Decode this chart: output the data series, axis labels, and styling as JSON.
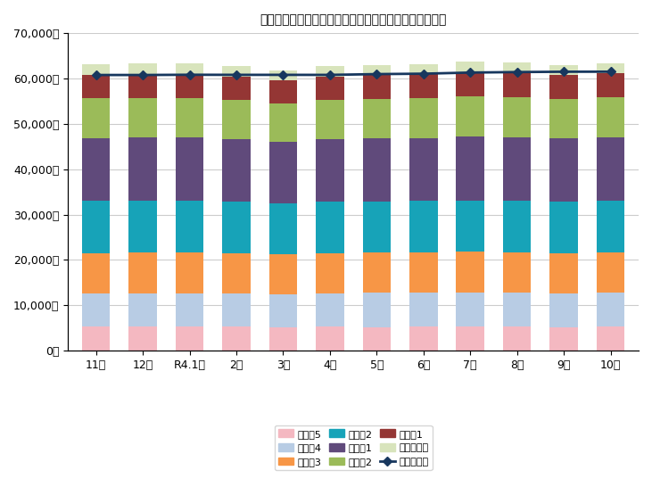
{
  "months": [
    "11月",
    "12月",
    "R4.1月",
    "2月",
    "3月",
    "4月",
    "5月",
    "6月",
    "7月",
    "8月",
    "9月",
    "10月"
  ],
  "series": {
    "要介護5": {
      "values": [
        5285,
        5306,
        5313,
        5242,
        5206,
        5247,
        5209,
        5249,
        5273,
        5239,
        5220,
        5273
      ],
      "color": "#f4b8c1"
    },
    "要介護4": {
      "values": [
        7331,
        7382,
        7375,
        7359,
        7284,
        7418,
        7514,
        7518,
        7525,
        7522,
        7445,
        7512
      ],
      "color": "#b8cce4"
    },
    "要介護3": {
      "values": [
        8931,
        8894,
        8888,
        8840,
        8785,
        8808,
        8862,
        8905,
        8986,
        8967,
        8870,
        8946
      ],
      "color": "#f79646"
    },
    "要介護2": {
      "values": [
        11529,
        11525,
        11441,
        11328,
        11168,
        11372,
        11320,
        11352,
        11316,
        11286,
        11290,
        11312
      ],
      "color": "#17a3b8"
    },
    "要介護1": {
      "values": [
        13815,
        13873,
        13902,
        13774,
        13571,
        13791,
        13850,
        13881,
        14072,
        14076,
        13968,
        13993
      ],
      "color": "#604a7b"
    },
    "要支援2": {
      "values": [
        8700,
        8745,
        8741,
        8653,
        8544,
        8636,
        8714,
        8681,
        8860,
        8845,
        8736,
        8766
      ],
      "color": "#9bbb59"
    },
    "要支援1": {
      "values": [
        5214,
        5253,
        5281,
        5254,
        5118,
        5176,
        5258,
        5295,
        5345,
        5355,
        5292,
        5357
      ],
      "color": "#943634"
    },
    "事業対象者": {
      "values": [
        2340,
        2343,
        2316,
        2281,
        2156,
        2210,
        2268,
        2272,
        2288,
        2266,
        2163,
        2229
      ],
      "color": "#d8e4bc"
    }
  },
  "line": {
    "label": "総認定者数",
    "values": [
      60767,
      60766,
      60819,
      60800,
      60799,
      60789,
      60961,
      61052,
      61300,
      61411,
      61484,
      61496
    ],
    "color": "#17375e",
    "marker": "D"
  },
  "ylim": [
    0,
    70000
  ],
  "yticks": [
    0,
    10000,
    20000,
    30000,
    40000,
    50000,
    60000,
    70000
  ],
  "title": "総認定者数と要介護・要支援別サービス受給者数の推移",
  "legend_order": [
    "要介護5",
    "要介護4",
    "要介護3",
    "要介護2",
    "要介護1",
    "要支援2",
    "要支援1",
    "事業対象者"
  ]
}
